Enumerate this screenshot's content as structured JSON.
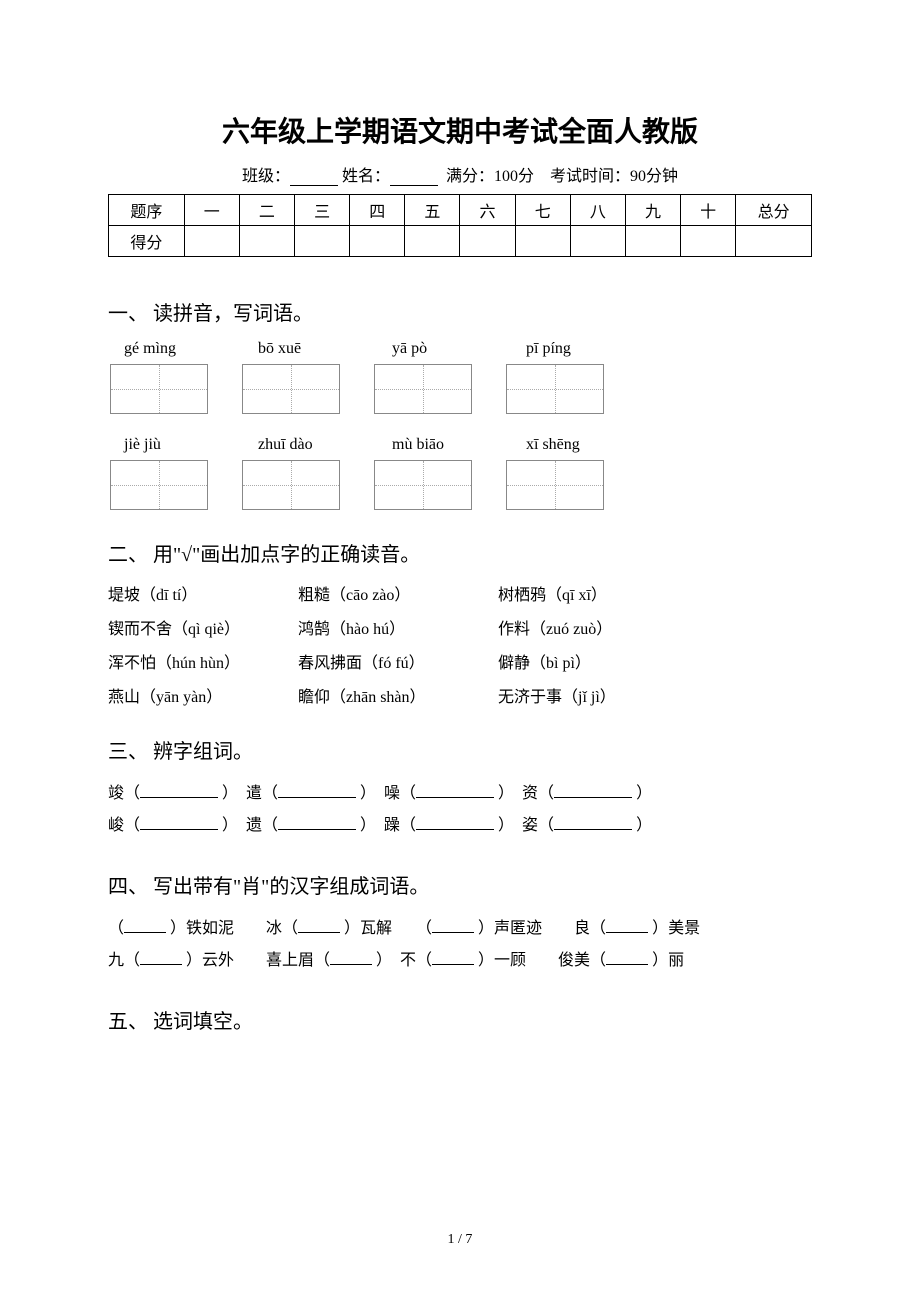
{
  "title": "六年级上学期语文期中考试全面人教版",
  "subtitle": {
    "class_label": "班级：",
    "name_label": "姓名：",
    "full_score": "满分：100分",
    "time": "考试时间：90分钟"
  },
  "score_table": {
    "row1_label": "题序",
    "row2_label": "得分",
    "cols": [
      "一",
      "二",
      "三",
      "四",
      "五",
      "六",
      "七",
      "八",
      "九",
      "十"
    ],
    "total_label": "总分"
  },
  "sections": {
    "s1": {
      "heading": "一、 读拼音，写词语。",
      "pinyin_row1": [
        "gé mìng",
        "bō xuē",
        "yā pò",
        "pī píng"
      ],
      "pinyin_row2": [
        "jiè jiù",
        "zhuī dào",
        "mù biāo",
        "xī shēng"
      ]
    },
    "s2": {
      "heading": "二、 用\"√\"画出加点字的正确读音。",
      "items": [
        "堤坡（dī tí）",
        "粗糙（cāo zào）",
        "树栖鸦（qī xī）",
        "锲而不舍（qì qiè）",
        "鸿鹄（hào hú）",
        "作料（zuó zuò）",
        "浑不怕（hún hùn）",
        "春风拂面（fó fú）",
        "僻静（bì pì）",
        "燕山（yān yàn）",
        "瞻仰（zhān shàn）",
        "无济于事（jǐ jì）"
      ]
    },
    "s3": {
      "heading": "三、 辨字组词。",
      "row1": [
        "竣（",
        "）　遣（",
        "）　噪（",
        "）　资（",
        "）"
      ],
      "row2": [
        "峻（",
        "）　遗（",
        "）　躁（",
        "）　姿（",
        "）"
      ]
    },
    "s4": {
      "heading": "四、 写出带有\"肖\"的汉字组成词语。",
      "row1": [
        "（",
        "）铁如泥　　冰（",
        "）瓦解　　（",
        "）声匿迹　　良（",
        "）美景"
      ],
      "row2": [
        "九（",
        "）云外　　喜上眉（",
        "）　不（",
        "）一顾　　俊美（",
        "）丽"
      ]
    },
    "s5": {
      "heading": "五、 选词填空。"
    }
  },
  "footer": "1 / 7",
  "colors": {
    "text": "#000000",
    "background": "#ffffff",
    "box_border": "#888888",
    "box_dotted": "#aaaaaa"
  },
  "fonts": {
    "title_family": "SimHei",
    "body_family": "SimSun",
    "title_size": 28,
    "heading_size": 20,
    "body_size": 16
  }
}
